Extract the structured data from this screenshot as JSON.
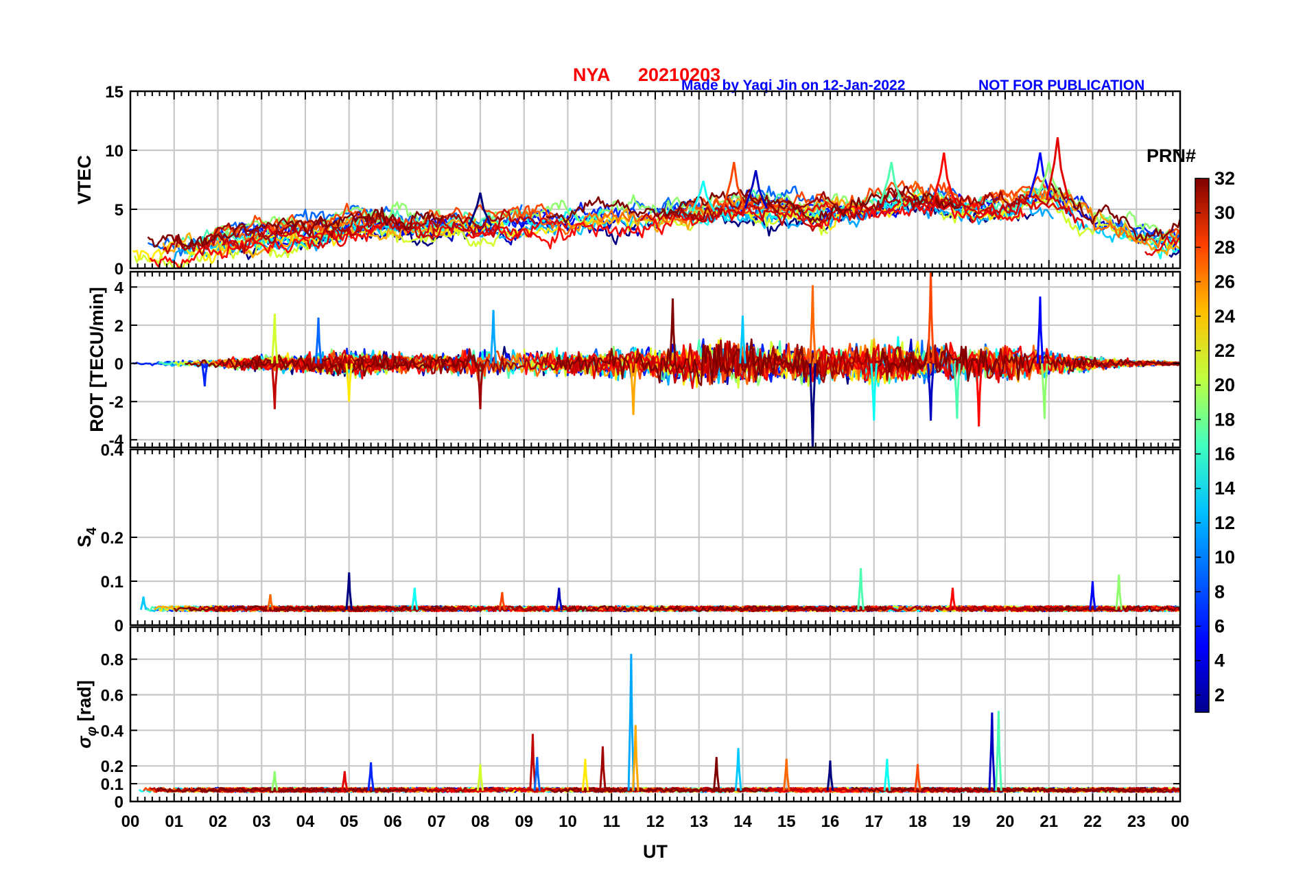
{
  "chart_data": {
    "type": "line",
    "title": {
      "station": "NYA",
      "date": "20210203",
      "credit": "Made by Yaqi Jin on 12-Jan-2022",
      "notice": "NOT FOR PUBLICATION"
    },
    "xlabel": "UT",
    "xlim": [
      0,
      24
    ],
    "x_tick_labels": [
      "00",
      "01",
      "02",
      "03",
      "04",
      "05",
      "06",
      "07",
      "08",
      "09",
      "10",
      "11",
      "12",
      "13",
      "14",
      "15",
      "16",
      "17",
      "18",
      "19",
      "20",
      "21",
      "22",
      "23",
      "00"
    ],
    "grid": true,
    "colorbar": {
      "label": "PRN#",
      "range": [
        1,
        32
      ],
      "ticks": [
        "2",
        "4",
        "6",
        "8",
        "10",
        "12",
        "14",
        "16",
        "18",
        "20",
        "22",
        "24",
        "26",
        "28",
        "30",
        "32"
      ],
      "colormap": "jet",
      "colors": [
        "#00008f",
        "#0000ff",
        "#0080ff",
        "#00ffff",
        "#80ff80",
        "#ffff00",
        "#ff8000",
        "#ff0000",
        "#800000"
      ]
    },
    "panels": [
      {
        "id": "vtec",
        "ylabel": "VTEC",
        "ylim": [
          0,
          15
        ],
        "yticks": [
          "0",
          "5",
          "10",
          "15"
        ],
        "description_range": [
          1,
          11
        ],
        "prns": [
          1,
          3,
          5,
          6,
          8,
          10,
          11,
          13,
          15,
          17,
          19,
          21,
          23,
          25,
          26,
          28,
          29,
          30,
          31,
          32
        ],
        "envelope": [
          [
            0,
            1.5
          ],
          [
            1,
            1.5
          ],
          [
            2,
            2.3
          ],
          [
            3,
            2.7
          ],
          [
            4,
            3.0
          ],
          [
            5,
            3.6
          ],
          [
            6,
            3.8
          ],
          [
            7,
            3.6
          ],
          [
            8,
            3.6
          ],
          [
            9,
            3.8
          ],
          [
            10,
            4.0
          ],
          [
            11,
            4.2
          ],
          [
            12,
            4.4
          ],
          [
            13,
            4.8
          ],
          [
            14,
            5.1
          ],
          [
            15,
            5.0
          ],
          [
            16,
            4.8
          ],
          [
            17,
            5.3
          ],
          [
            18,
            5.8
          ],
          [
            19,
            5.3
          ],
          [
            20,
            5.2
          ],
          [
            21,
            6.2
          ],
          [
            22,
            4.1
          ],
          [
            23,
            2.6
          ],
          [
            24,
            2.2
          ]
        ],
        "spikes": [
          [
            8.0,
            6.4
          ],
          [
            13.1,
            7.4
          ],
          [
            13.8,
            9.0
          ],
          [
            14.3,
            8.3
          ],
          [
            17.4,
            9.0
          ],
          [
            18.6,
            9.8
          ],
          [
            20.8,
            9.8
          ],
          [
            21.0,
            9.0
          ],
          [
            21.2,
            11.1
          ]
        ]
      },
      {
        "id": "rot",
        "ylabel": "ROT [TECU/min]",
        "ylim": [
          -4.4,
          4.8
        ],
        "yticks": [
          "-4",
          "-2",
          "0",
          "2",
          "4"
        ],
        "envelope": [
          [
            0,
            0.1
          ],
          [
            2,
            0.25
          ],
          [
            3,
            0.5
          ],
          [
            4,
            0.55
          ],
          [
            5,
            0.9
          ],
          [
            6,
            0.6
          ],
          [
            7,
            0.6
          ],
          [
            8,
            0.9
          ],
          [
            9,
            0.8
          ],
          [
            10,
            0.7
          ],
          [
            11,
            0.9
          ],
          [
            12,
            0.9
          ],
          [
            13,
            1.4
          ],
          [
            14,
            1.4
          ],
          [
            15,
            1.2
          ],
          [
            16,
            1.1
          ],
          [
            17,
            1.3
          ],
          [
            18,
            1.2
          ],
          [
            19,
            1.1
          ],
          [
            20,
            1.2
          ],
          [
            21,
            0.8
          ],
          [
            22,
            0.4
          ],
          [
            23,
            0.2
          ],
          [
            24,
            0.1
          ]
        ],
        "spikes": [
          [
            1.7,
            -1.2
          ],
          [
            3.3,
            2.6
          ],
          [
            3.3,
            -2.4
          ],
          [
            4.3,
            2.4
          ],
          [
            5.0,
            -2.0
          ],
          [
            8.0,
            -2.4
          ],
          [
            8.3,
            2.8
          ],
          [
            11.5,
            -2.7
          ],
          [
            12.4,
            3.4
          ],
          [
            14.0,
            2.5
          ],
          [
            15.6,
            4.1
          ],
          [
            15.6,
            -4.6
          ],
          [
            17.0,
            -3.0
          ],
          [
            18.3,
            4.9
          ],
          [
            18.3,
            -3.0
          ],
          [
            18.9,
            -2.9
          ],
          [
            19.4,
            -3.3
          ],
          [
            20.8,
            3.5
          ],
          [
            20.9,
            -2.9
          ]
        ]
      },
      {
        "id": "s4",
        "ylabel": "S4",
        "ylim": [
          0,
          0.4
        ],
        "yticks": [
          "0",
          "0.1",
          "0.2",
          "0.4"
        ],
        "baseline": 0.035,
        "noise": 0.012,
        "spikes": [
          [
            0.3,
            0.065
          ],
          [
            3.2,
            0.07
          ],
          [
            5.0,
            0.12
          ],
          [
            6.5,
            0.085
          ],
          [
            8.5,
            0.075
          ],
          [
            9.8,
            0.085
          ],
          [
            16.7,
            0.13
          ],
          [
            18.8,
            0.085
          ],
          [
            22.0,
            0.1
          ],
          [
            22.6,
            0.115
          ]
        ]
      },
      {
        "id": "sigma_phi",
        "ylabel": "σφ [rad]",
        "ylim": [
          0,
          0.98
        ],
        "yticks": [
          "0",
          "0.1",
          "0.2",
          "0.4",
          "0.6",
          "0.8"
        ],
        "baseline": 0.06,
        "noise": 0.025,
        "spikes": [
          [
            3.3,
            0.17
          ],
          [
            4.9,
            0.17
          ],
          [
            5.5,
            0.22
          ],
          [
            8.0,
            0.21
          ],
          [
            9.2,
            0.38
          ],
          [
            9.3,
            0.25
          ],
          [
            10.4,
            0.24
          ],
          [
            10.8,
            0.31
          ],
          [
            11.45,
            0.83
          ],
          [
            11.55,
            0.43
          ],
          [
            13.4,
            0.25
          ],
          [
            13.9,
            0.3
          ],
          [
            15.0,
            0.24
          ],
          [
            16.0,
            0.23
          ],
          [
            17.3,
            0.24
          ],
          [
            18.0,
            0.21
          ],
          [
            19.7,
            0.5
          ],
          [
            19.85,
            0.51
          ]
        ]
      }
    ]
  }
}
